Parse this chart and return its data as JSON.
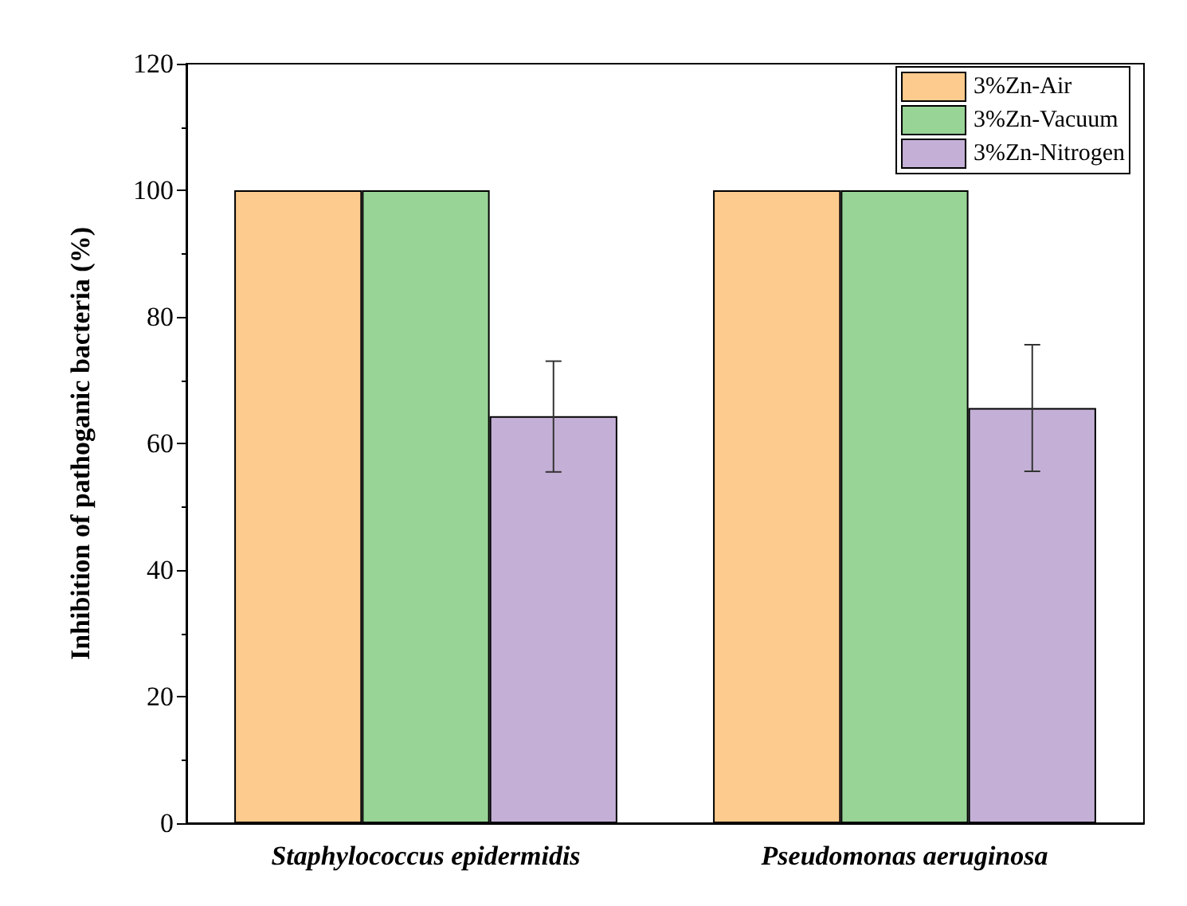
{
  "chart_data": {
    "type": "bar",
    "categories": [
      "Staphylococcus epidermidis",
      "Pseudomonas aeruginosa"
    ],
    "ylabel": "Inhibition of pathoganic bacteria (%)",
    "series": [
      {
        "name": "3%Zn-Air",
        "color": "#fecb8f",
        "values": [
          100,
          100
        ]
      },
      {
        "name": "3%Zn-Vacuum",
        "color": "#98d496",
        "values": [
          100,
          100
        ]
      },
      {
        "name": "3%Zn-Nitrogen",
        "color": "#c4b0d6",
        "values": [
          64.3,
          65.6
        ],
        "errors": [
          [
            55.5,
            73.0
          ],
          [
            55.6,
            75.6
          ]
        ]
      }
    ],
    "ylim": [
      0,
      120
    ],
    "yticks": [
      0,
      20,
      40,
      60,
      80,
      100,
      120
    ],
    "grid": false,
    "legend": "top right"
  }
}
